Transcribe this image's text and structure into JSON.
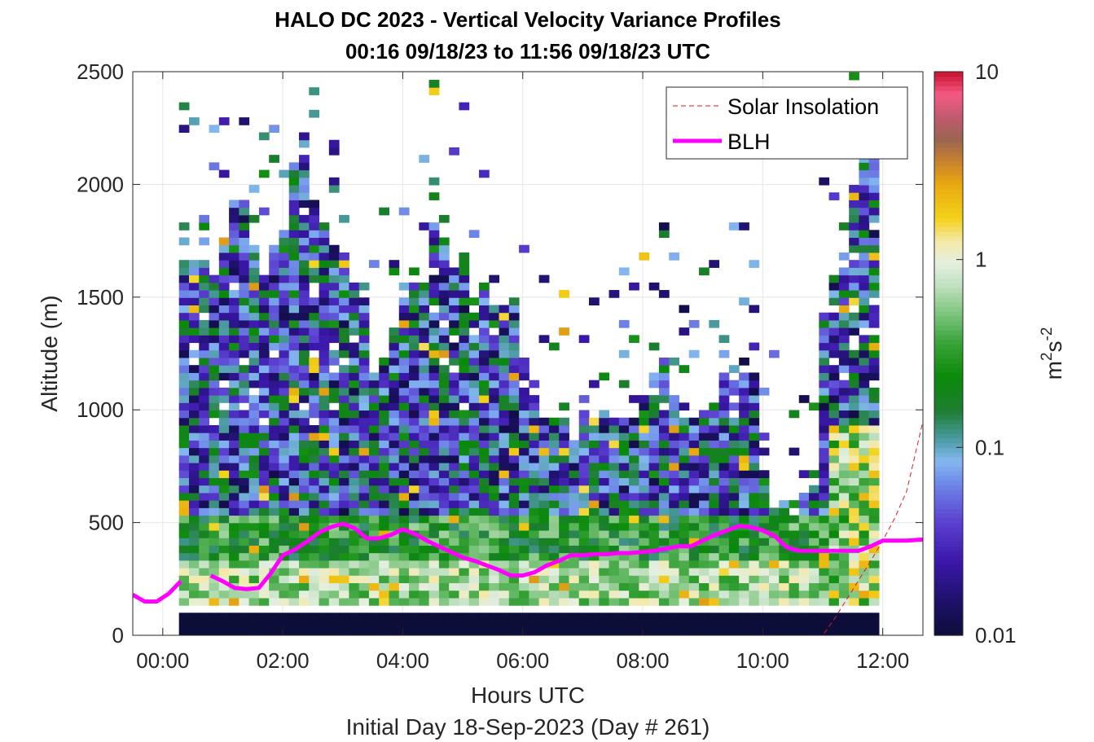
{
  "chart_data": {
    "type": "heatmap",
    "title": "HALO DC 2023 - Vertical Velocity Variance Profiles",
    "subtitle": "00:16 09/18/23 to 11:56 09/18/23  UTC",
    "xlabel": "Hours UTC",
    "xlabel2": "Initial Day 18-Sep-2023 (Day # 261)",
    "ylabel": "Altitude (m)",
    "xlim_hours": [
      -0.5,
      12.67
    ],
    "ylim": [
      0,
      2500
    ],
    "x_ticks": [
      0,
      2,
      4,
      6,
      8,
      10,
      12
    ],
    "x_tick_labels": [
      "00:00",
      "02:00",
      "04:00",
      "06:00",
      "08:00",
      "10:00",
      "12:00"
    ],
    "y_ticks": [
      0,
      500,
      1000,
      1500,
      2000,
      2500
    ],
    "y_tick_labels": [
      "0",
      "500",
      "1000",
      "1500",
      "2000",
      "2500"
    ],
    "grid": true,
    "legend_position": "top-right",
    "colorbar": {
      "label_base": "m",
      "label_sup1": "2",
      "label_mid": "s",
      "label_sup2": "-2",
      "scale": "log",
      "range": [
        0.01,
        10
      ],
      "ticks": [
        0.01,
        0.1,
        1,
        10
      ],
      "tick_labels": [
        "0.01",
        "0.1",
        "1",
        "10"
      ]
    },
    "series": [
      {
        "name": "Solar Insolation",
        "style": "dashed",
        "color": "#e8161b",
        "x": [
          -0.5,
          11.0,
          11.2,
          11.4,
          11.6,
          11.8,
          12.0,
          12.2,
          12.4,
          12.67
        ],
        "y": [
          0,
          0,
          75,
          160,
          245,
          330,
          420,
          520,
          640,
          950
        ]
      },
      {
        "name": "BLH",
        "style": "solid",
        "color": "#ff00ff",
        "x": [
          -0.5,
          -0.3,
          -0.1,
          0.1,
          0.3,
          0.6,
          0.8,
          1.0,
          1.2,
          1.4,
          1.6,
          1.8,
          2.0,
          2.2,
          2.4,
          2.6,
          2.8,
          3.0,
          3.2,
          3.4,
          3.6,
          3.8,
          4.0,
          4.2,
          4.4,
          4.6,
          4.8,
          5.0,
          5.2,
          5.4,
          5.6,
          5.8,
          6.0,
          6.2,
          6.4,
          6.6,
          6.8,
          7.0,
          7.2,
          7.4,
          7.6,
          7.8,
          8.0,
          8.2,
          8.4,
          8.6,
          8.8,
          9.0,
          9.2,
          9.4,
          9.6,
          9.8,
          10.0,
          10.2,
          10.4,
          10.6,
          10.8,
          11.0,
          11.2,
          11.4,
          11.6,
          11.8,
          12.0,
          12.2,
          12.4,
          12.67
        ],
        "y": [
          180,
          150,
          150,
          185,
          240,
          null,
          265,
          240,
          210,
          205,
          210,
          275,
          355,
          380,
          415,
          455,
          480,
          495,
          475,
          430,
          430,
          445,
          470,
          450,
          420,
          395,
          370,
          345,
          330,
          310,
          290,
          265,
          265,
          280,
          310,
          330,
          355,
          355,
          360,
          360,
          365,
          365,
          370,
          375,
          385,
          395,
          395,
          420,
          445,
          465,
          485,
          480,
          465,
          440,
          390,
          375,
          375,
          375,
          375,
          375,
          375,
          395,
          420,
          420,
          420,
          425
        ]
      }
    ],
    "heatmap_range_hours": [
      0.27,
      11.93
    ]
  },
  "colors": {
    "blh": "#ff00ff",
    "solar": "#e8161b",
    "grid": "#e6e6e6"
  }
}
